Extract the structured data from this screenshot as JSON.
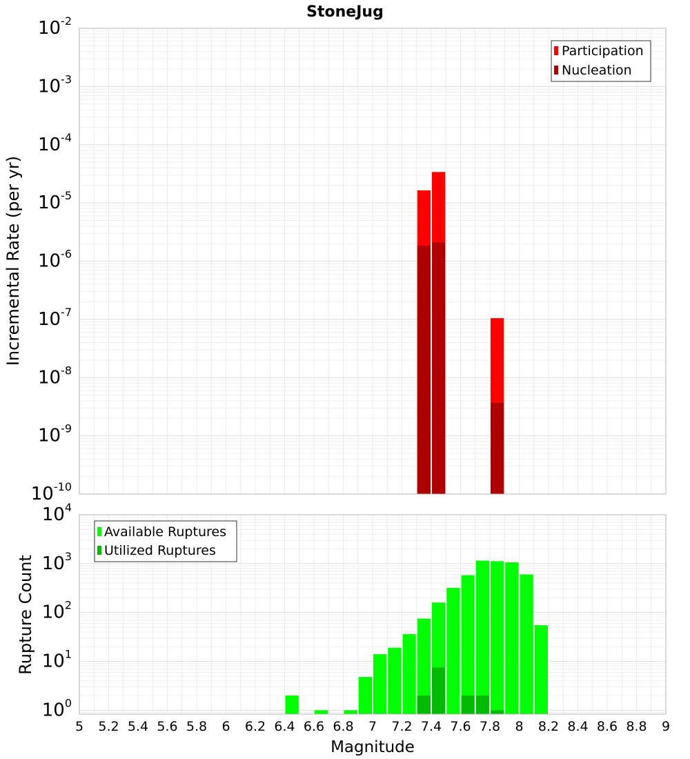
{
  "title": "StoneJug",
  "chart_data": [
    {
      "type": "bar",
      "scale": "log",
      "ylabel": "Incremental Rate (per yr)",
      "xlim": [
        5,
        9
      ],
      "ylim_exponents": [
        -10,
        -2
      ],
      "y_decade_labels": [
        {
          "base": "10",
          "exp": "-2"
        },
        {
          "base": "10",
          "exp": "-3"
        },
        {
          "base": "10",
          "exp": "-4"
        },
        {
          "base": "10",
          "exp": "-5"
        },
        {
          "base": "10",
          "exp": "-6"
        },
        {
          "base": "10",
          "exp": "-7"
        },
        {
          "base": "10",
          "exp": "-8"
        },
        {
          "base": "10",
          "exp": "-9"
        },
        {
          "base": "10",
          "exp": "-10"
        }
      ],
      "bar_width": 0.1,
      "legend": [
        "Participation",
        "Nucleation"
      ],
      "legend_position": "top-right",
      "series": [
        {
          "name": "Participation",
          "color": "#ff0000",
          "x": [
            7.35,
            7.45,
            7.85
          ],
          "values": [
            1.65e-05,
            3.4e-05,
            1.05e-07
          ]
        },
        {
          "name": "Nucleation",
          "color": "#b00000",
          "x": [
            7.35,
            7.45,
            7.85
          ],
          "values": [
            1.85e-06,
            2.1e-06,
            3.7e-09
          ]
        }
      ]
    },
    {
      "type": "bar",
      "scale": "log",
      "ylabel": "Rupture Count",
      "xlabel": "Magnitude",
      "xlim": [
        5,
        9
      ],
      "ylim_exponents": [
        -0.08,
        4
      ],
      "y_decade_labels": [
        {
          "base": "10",
          "exp": "4"
        },
        {
          "base": "10",
          "exp": "3"
        },
        {
          "base": "10",
          "exp": "2"
        },
        {
          "base": "10",
          "exp": "1"
        },
        {
          "base": "10",
          "exp": "0"
        }
      ],
      "bar_width": 0.1,
      "legend": [
        "Available Ruptures",
        "Utilized Ruptures"
      ],
      "legend_position": "top-left",
      "x_tick_labels": [
        "5",
        "5.2",
        "5.4",
        "5.6",
        "5.8",
        "6",
        "6.2",
        "6.4",
        "6.6",
        "6.8",
        "7",
        "7.2",
        "7.4",
        "7.6",
        "7.8",
        "8",
        "8.2",
        "8.4",
        "8.6",
        "8.8",
        "9"
      ],
      "series": [
        {
          "name": "Available Ruptures",
          "color": "#00ff00",
          "x": [
            6.45,
            6.65,
            6.85,
            6.95,
            7.05,
            7.15,
            7.25,
            7.35,
            7.45,
            7.55,
            7.65,
            7.75,
            7.85,
            7.95,
            8.05,
            8.15
          ],
          "values": [
            2,
            1,
            1,
            4.8,
            14,
            19,
            36,
            75,
            160,
            320,
            580,
            1150,
            1120,
            1060,
            600,
            55
          ]
        },
        {
          "name": "Utilized Ruptures",
          "color": "#00bb00",
          "x": [
            7.35,
            7.45,
            7.65,
            7.75,
            7.85
          ],
          "values": [
            2,
            7.5,
            2,
            2,
            1
          ]
        }
      ]
    }
  ]
}
